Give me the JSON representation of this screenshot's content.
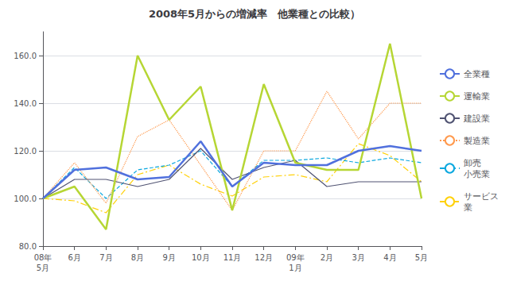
{
  "chart_data": {
    "type": "line",
    "title": "2008年5月からの増減率　他業種との比較）",
    "categories": [
      "08年\n5月",
      "6月",
      "7月",
      "8月",
      "9月",
      "10月",
      "11月",
      "12月",
      "09年\n1月",
      "2月",
      "3月",
      "4月",
      "5月"
    ],
    "series": [
      {
        "name": "全業種",
        "line_style": "solid",
        "values": [
          100,
          112,
          113,
          108,
          109,
          124,
          105,
          115,
          114,
          114,
          120,
          122,
          120
        ]
      },
      {
        "name": "運輸業",
        "line_style": "solid",
        "values": [
          100,
          105,
          87,
          160,
          133,
          147,
          95,
          148,
          115,
          112,
          112,
          165,
          100
        ]
      },
      {
        "name": "建設業",
        "line_style": "solid",
        "values": [
          100,
          108,
          108,
          105,
          108,
          121,
          108,
          113,
          116,
          105,
          107,
          107,
          107
        ]
      },
      {
        "name": "製造業",
        "line_style": "dotted",
        "values": [
          100,
          115,
          98,
          126,
          133,
          114,
          95,
          120,
          120,
          145,
          125,
          140,
          140
        ]
      },
      {
        "name": "卸売\n小売業",
        "line_style": "dashed",
        "values": [
          100,
          113,
          100,
          112,
          114,
          120,
          105,
          116,
          116,
          117,
          115,
          117,
          115
        ]
      },
      {
        "name": "サービス\n業",
        "line_style": "dashdot",
        "values": [
          100,
          99,
          94,
          110,
          114,
          106,
          101,
          109,
          110,
          107,
          123,
          118,
          107
        ]
      }
    ],
    "ylim": [
      80.0,
      170.0
    ],
    "yticks": [
      {
        "value": 80,
        "label": "80.0"
      },
      {
        "value": 100,
        "label": "100.0"
      },
      {
        "value": 120,
        "label": "120.0"
      },
      {
        "value": 140,
        "label": "140.0"
      },
      {
        "value": 160,
        "label": "160.0"
      }
    ],
    "grid": true,
    "legend": "right"
  }
}
